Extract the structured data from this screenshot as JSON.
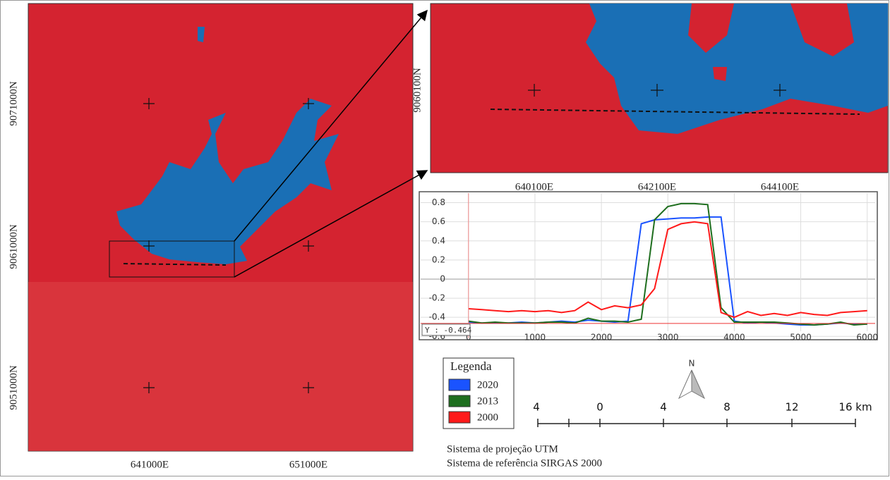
{
  "map": {
    "y_labels": [
      "9071000N",
      "9061000N",
      "9051000N"
    ],
    "x_labels": [
      "641000E",
      "651000E"
    ]
  },
  "inset": {
    "y_labels": [
      "9060100N"
    ],
    "x_labels": [
      "640100E",
      "642100E",
      "644100E"
    ]
  },
  "chart_data": {
    "type": "line",
    "x": [
      0,
      200,
      400,
      600,
      800,
      1000,
      1200,
      1400,
      1600,
      1800,
      2000,
      2200,
      2400,
      2600,
      2800,
      3000,
      3200,
      3400,
      3600,
      3800,
      4000,
      4200,
      4400,
      4600,
      4800,
      5000,
      5200,
      5400,
      5600,
      5800,
      6000
    ],
    "series": [
      {
        "name": "2020",
        "color": "#1a53ff",
        "values": [
          -0.45,
          -0.46,
          -0.46,
          -0.46,
          -0.45,
          -0.46,
          -0.45,
          -0.44,
          -0.45,
          -0.43,
          -0.44,
          -0.45,
          -0.44,
          0.58,
          0.62,
          0.63,
          0.64,
          0.64,
          0.65,
          0.65,
          -0.44,
          -0.46,
          -0.45,
          -0.46,
          -0.47,
          -0.48,
          -0.48,
          -0.47,
          -0.46,
          -0.47,
          -0.47
        ]
      },
      {
        "name": "2013",
        "color": "#1e6e1e",
        "values": [
          -0.44,
          -0.46,
          -0.45,
          -0.46,
          -0.46,
          -0.46,
          -0.45,
          -0.45,
          -0.46,
          -0.41,
          -0.44,
          -0.44,
          -0.45,
          -0.42,
          0.62,
          0.76,
          0.79,
          0.79,
          0.78,
          -0.3,
          -0.45,
          -0.45,
          -0.45,
          -0.45,
          -0.46,
          -0.47,
          -0.48,
          -0.47,
          -0.45,
          -0.48,
          -0.47
        ]
      },
      {
        "name": "2000",
        "color": "#ff1a1a",
        "values": [
          -0.31,
          -0.32,
          -0.33,
          -0.34,
          -0.33,
          -0.34,
          -0.33,
          -0.35,
          -0.33,
          -0.24,
          -0.32,
          -0.28,
          -0.3,
          -0.27,
          -0.1,
          0.52,
          0.58,
          0.6,
          0.58,
          -0.35,
          -0.4,
          -0.34,
          -0.38,
          -0.36,
          -0.38,
          -0.35,
          -0.37,
          -0.38,
          -0.35,
          -0.34,
          -0.33
        ]
      }
    ],
    "xlim": [
      -720,
      6120
    ],
    "ylim": [
      -0.62,
      0.9
    ],
    "xticks": [
      0,
      1000,
      2000,
      3000,
      4000,
      5000,
      6000
    ],
    "yticks": [
      0.8,
      0.6,
      0.4,
      0.2,
      0,
      -0.2,
      -0.4,
      -0.6
    ],
    "grid": true,
    "cursor": {
      "label": "Y : -0.464",
      "value": -0.464
    }
  },
  "legend": {
    "title": "Legenda"
  },
  "north": "N",
  "scale": {
    "labels": [
      "4",
      "0",
      "4",
      "8",
      "12",
      "16 km"
    ]
  },
  "notes": [
    "Sistema de projeção UTM",
    "Sistema de referência SIRGAS 2000"
  ]
}
